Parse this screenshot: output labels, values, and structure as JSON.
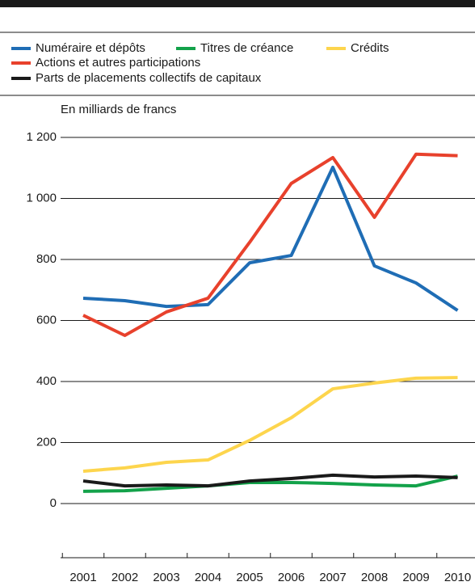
{
  "chart_data": {
    "type": "line",
    "y_axis_label": "En milliards de francs",
    "categories": [
      "2001",
      "2002",
      "2003",
      "2004",
      "2005",
      "2006",
      "2007",
      "2008",
      "2009",
      "2010"
    ],
    "series": [
      {
        "name": "Numéraire et dépôts",
        "color": "#1f6db5",
        "values": [
          673,
          665,
          646,
          652,
          789,
          813,
          1102,
          779,
          723,
          633
        ]
      },
      {
        "name": "Titres de créance",
        "color": "#13a24a",
        "values": [
          40,
          42,
          50,
          58,
          69,
          69,
          66,
          61,
          58,
          90
        ]
      },
      {
        "name": "Crédits",
        "color": "#fdd54d",
        "values": [
          106,
          117,
          135,
          143,
          207,
          281,
          376,
          395,
          411,
          413
        ]
      },
      {
        "name": "Actions et autres participations",
        "color": "#e8412c",
        "values": [
          617,
          551,
          628,
          673,
          856,
          1049,
          1134,
          938,
          1145,
          1140
        ]
      },
      {
        "name": "Parts de placements collectifs de capitaux",
        "color": "#1a1a1a",
        "values": [
          74,
          58,
          61,
          58,
          74,
          82,
          93,
          87,
          90,
          85
        ]
      }
    ],
    "ylim": [
      0,
      1200
    ],
    "yticks": [
      0,
      200,
      400,
      600,
      800,
      {
        "value": 1000,
        "label": "1 000"
      },
      {
        "value": 1200,
        "label": "1 200"
      }
    ],
    "grid": true
  }
}
